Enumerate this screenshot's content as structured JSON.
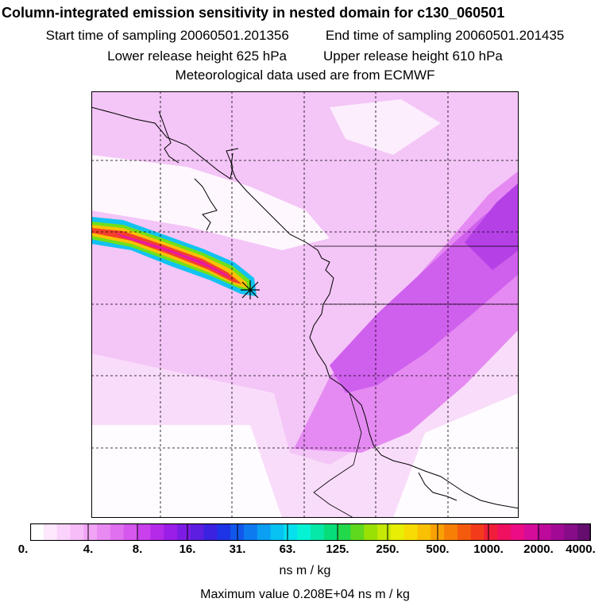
{
  "header": {
    "title": "Column-integrated emission sensitivity in nested domain for c130_060501",
    "start_label": "Start time of sampling 20060501.201356",
    "end_label": "End time of sampling 20060501.201435",
    "lower_label": "Lower release height  625 hPa",
    "upper_label": "Upper release height  610 hPa",
    "met_label": "Meteorological data used are from ECMWF"
  },
  "colorbar": {
    "tick_labels": [
      "0.",
      "4.",
      "8.",
      "16.",
      "31.",
      "63.",
      "125.",
      "250.",
      "500.",
      "1000.",
      "2000.",
      "4000."
    ],
    "colors": [
      "#ffffff",
      "#fde8fd",
      "#fbd2fb",
      "#f7bdf8",
      "#f1a4f6",
      "#e98af3",
      "#e070f0",
      "#d657ee",
      "#c940ec",
      "#b52ae9",
      "#9b1ee8",
      "#7d1ce4",
      "#5d1ee2",
      "#3a22e0",
      "#1d35e6",
      "#1257ec",
      "#0e7af0",
      "#0a9ff2",
      "#07c2f3",
      "#06e0ee",
      "#06f2d5",
      "#05e8a8",
      "#07de7a",
      "#22d84b",
      "#5fd91e",
      "#99e005",
      "#c5e805",
      "#e8ee04",
      "#f7dc03",
      "#fac003",
      "#f9a104",
      "#f87f06",
      "#f55b0d",
      "#f33b1c",
      "#f01e3b",
      "#ef1060",
      "#ec0d86",
      "#d50c99",
      "#bd0a9a",
      "#a20a95",
      "#860c88",
      "#650e70"
    ],
    "units": "ns m / kg"
  },
  "footer": {
    "max_value": "Maximum value  0.208E+04 ns m / kg"
  }
}
